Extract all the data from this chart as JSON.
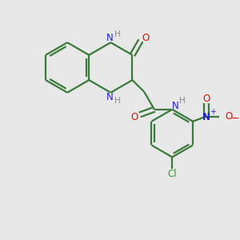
{
  "bg_color": "#e8e8e8",
  "bond_color": "#3a7a3a",
  "n_color": "#2222cc",
  "o_color": "#dd1100",
  "cl_color": "#2d9e2d",
  "h_color": "#888888",
  "lw": 1.6,
  "figsize": [
    3.0,
    3.0
  ],
  "dpi": 100,
  "xlim": [
    0,
    10
  ],
  "ylim": [
    0,
    10
  ]
}
